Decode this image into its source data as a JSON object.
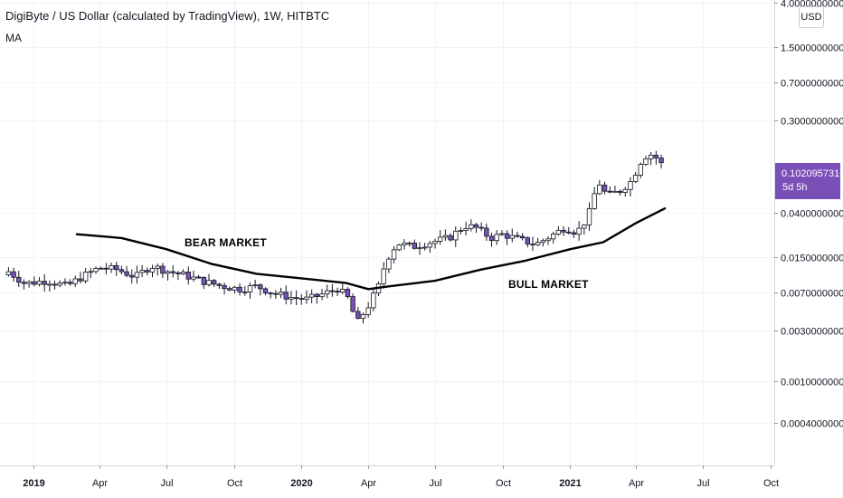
{
  "chart_data": {
    "type": "candlestick",
    "title": "DigiByte / US Dollar (calculated by TradingView), 1W, HITBTC",
    "indicator": "MA",
    "currency": "USD",
    "y_scale": "log",
    "ylim": [
      0.00025,
      4.0
    ],
    "y_ticks": [
      "4.0000000000",
      "1.5000000000",
      "0.7000000000",
      "0.3000000000",
      "0.0400000000",
      "0.0150000000",
      "0.0070000000",
      "0.0030000000",
      "0.0010000000",
      "0.0004000000"
    ],
    "y_tick_values": [
      4.0,
      1.5,
      0.7,
      0.3,
      0.04,
      0.015,
      0.007,
      0.003,
      0.001,
      0.0004
    ],
    "xlim": [
      "2018-11-28",
      "2021-10-04"
    ],
    "x_ticks": [
      {
        "label": "2019",
        "date": "2019-01-01",
        "bold": true
      },
      {
        "label": "Apr",
        "date": "2019-04-01",
        "bold": false
      },
      {
        "label": "Jul",
        "date": "2019-07-01",
        "bold": false
      },
      {
        "label": "Oct",
        "date": "2019-10-01",
        "bold": false
      },
      {
        "label": "2020",
        "date": "2020-01-01",
        "bold": true
      },
      {
        "label": "Apr",
        "date": "2020-04-01",
        "bold": false
      },
      {
        "label": "Jul",
        "date": "2020-07-01",
        "bold": false
      },
      {
        "label": "Oct",
        "date": "2020-10-01",
        "bold": false
      },
      {
        "label": "2021",
        "date": "2021-01-01",
        "bold": true
      },
      {
        "label": "Apr",
        "date": "2021-04-01",
        "bold": false
      },
      {
        "label": "Jul",
        "date": "2021-07-01",
        "bold": false
      },
      {
        "label": "Oct",
        "date": "2021-10-01",
        "bold": false
      }
    ],
    "last_price": "0.1020957316",
    "countdown": "5d 5h",
    "annotations": [
      "BEAR MARKET",
      "BULL MARKET"
    ],
    "colors": {
      "up": "#ffffff",
      "down": "#7b4fb8",
      "wick": "#131722",
      "ma": "#000000",
      "last_price_bg": "#7b4fb8",
      "grid": "#f0f3fa"
    },
    "close_anchors": [
      [
        "2018-11-28",
        0.011
      ],
      [
        "2018-12-20",
        0.0085
      ],
      [
        "2019-01-20",
        0.009
      ],
      [
        "2019-02-15",
        0.008
      ],
      [
        "2019-03-10",
        0.01
      ],
      [
        "2019-04-01",
        0.012
      ],
      [
        "2019-04-25",
        0.0115
      ],
      [
        "2019-05-20",
        0.0098
      ],
      [
        "2019-06-10",
        0.0125
      ],
      [
        "2019-07-01",
        0.0112
      ],
      [
        "2019-07-25",
        0.0102
      ],
      [
        "2019-08-20",
        0.0089
      ],
      [
        "2019-09-15",
        0.008
      ],
      [
        "2019-10-10",
        0.0075
      ],
      [
        "2019-11-01",
        0.008
      ],
      [
        "2019-11-25",
        0.0068
      ],
      [
        "2019-12-20",
        0.0062
      ],
      [
        "2020-01-10",
        0.006
      ],
      [
        "2020-02-01",
        0.0068
      ],
      [
        "2020-02-20",
        0.0076
      ],
      [
        "2020-03-06",
        0.006
      ],
      [
        "2020-03-16",
        0.0035
      ],
      [
        "2020-04-01",
        0.0052
      ],
      [
        "2020-04-15",
        0.008
      ],
      [
        "2020-04-25",
        0.014
      ],
      [
        "2020-05-10",
        0.0205
      ],
      [
        "2020-06-01",
        0.019
      ],
      [
        "2020-06-25",
        0.021
      ],
      [
        "2020-07-20",
        0.023
      ],
      [
        "2020-08-10",
        0.03
      ],
      [
        "2020-08-25",
        0.029
      ],
      [
        "2020-09-15",
        0.023
      ],
      [
        "2020-10-01",
        0.025
      ],
      [
        "2020-10-25",
        0.022
      ],
      [
        "2020-11-15",
        0.02
      ],
      [
        "2020-12-10",
        0.025
      ],
      [
        "2020-12-25",
        0.029
      ],
      [
        "2021-01-10",
        0.026
      ],
      [
        "2021-01-25",
        0.036
      ],
      [
        "2021-02-08",
        0.08
      ],
      [
        "2021-02-20",
        0.058
      ],
      [
        "2021-03-10",
        0.065
      ],
      [
        "2021-03-25",
        0.08
      ],
      [
        "2021-04-10",
        0.135
      ],
      [
        "2021-04-20",
        0.145
      ],
      [
        "2021-05-01",
        0.13
      ],
      [
        "2021-05-10",
        0.102
      ]
    ],
    "ma_line": [
      [
        "2019-03-01",
        0.025
      ],
      [
        "2019-05-01",
        0.023
      ],
      [
        "2019-07-01",
        0.018
      ],
      [
        "2019-09-01",
        0.013
      ],
      [
        "2019-11-01",
        0.0105
      ],
      [
        "2020-01-01",
        0.0095
      ],
      [
        "2020-03-01",
        0.0086
      ],
      [
        "2020-04-01",
        0.0075
      ],
      [
        "2020-05-01",
        0.008
      ],
      [
        "2020-07-01",
        0.009
      ],
      [
        "2020-09-01",
        0.0115
      ],
      [
        "2020-11-01",
        0.014
      ],
      [
        "2021-01-01",
        0.018
      ],
      [
        "2021-02-15",
        0.021
      ],
      [
        "2021-04-01",
        0.032
      ],
      [
        "2021-05-10",
        0.044
      ]
    ]
  }
}
